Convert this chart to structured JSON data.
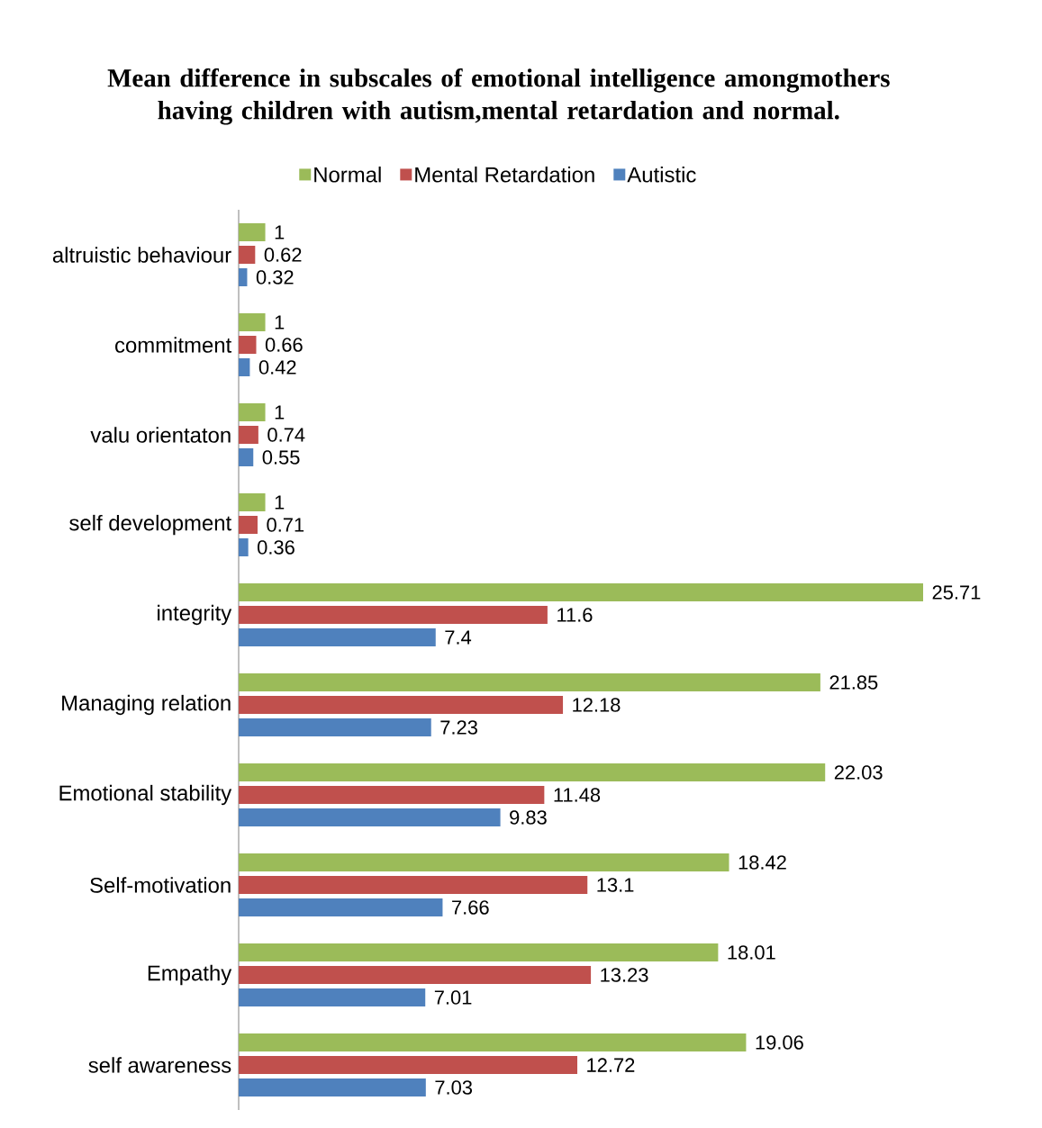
{
  "chart_data": {
    "type": "bar",
    "orientation": "horizontal",
    "title": "Mean difference in subscales of emotional intelligence amongmothers having children with autism,mental retardation and normal.",
    "categories": [
      "altruistic behaviour",
      "commitment",
      "valu orientaton",
      "self development",
      "integrity",
      "Managing relation",
      "Emotional stability",
      "Self-motivation",
      "Empathy",
      "self awareness"
    ],
    "series": [
      {
        "name": "Normal",
        "color": "#9bbb59",
        "values": [
          1,
          1,
          1,
          1,
          25.71,
          21.85,
          22.03,
          18.42,
          18.01,
          19.06
        ]
      },
      {
        "name": "Mental Retardation",
        "color": "#c0504d",
        "values": [
          0.62,
          0.66,
          0.74,
          0.71,
          11.6,
          12.18,
          11.48,
          13.1,
          13.23,
          12.72
        ]
      },
      {
        "name": "Autistic",
        "color": "#4f81bd",
        "values": [
          0.32,
          0.42,
          0.55,
          0.36,
          7.4,
          7.23,
          9.83,
          7.66,
          7.01,
          7.03
        ]
      }
    ],
    "data_labels": true,
    "legend": "top"
  }
}
